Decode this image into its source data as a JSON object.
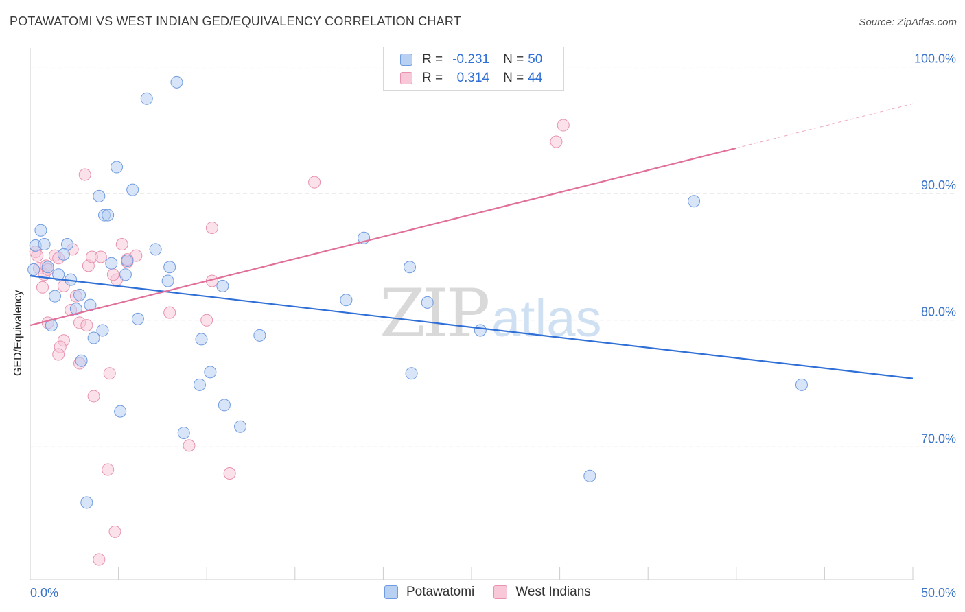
{
  "header": {
    "title": "POTAWATOMI VS WEST INDIAN GED/EQUIVALENCY CORRELATION CHART",
    "source": "Source: ZipAtlas.com"
  },
  "legend_stats": {
    "blue": {
      "r_label": "R =",
      "r_value": "-0.231",
      "n_label": "N =",
      "n_value": "50"
    },
    "pink": {
      "r_label": "R =",
      "r_value": "0.314",
      "n_label": "N =",
      "n_value": "44"
    }
  },
  "bottom_legend": {
    "blue": "Potawatomi",
    "pink": "West Indians"
  },
  "watermark": {
    "zip": "ZIP",
    "atlas": "atlas"
  },
  "colors": {
    "blue_fill": "#b8d0f2",
    "blue_stroke": "#6f9be0",
    "blue_line": "#2f6fd6",
    "pink_fill": "#f8c8d8",
    "pink_stroke": "#e892b0",
    "pink_line": "#e07099",
    "tick_label": "#3a73c9",
    "grid": "#e6e6e6"
  },
  "chart_data": {
    "type": "scatter",
    "title": "POTAWATOMI VS WEST INDIAN GED/EQUIVALENCY CORRELATION CHART",
    "xlabel": "",
    "ylabel": "GED/Equivalency",
    "xlim": [
      0,
      50
    ],
    "ylim": [
      59.5,
      101.5
    ],
    "x_tick_labels": [
      "0.0%",
      "50.0%"
    ],
    "y_ticks": [
      70,
      80,
      90,
      100
    ],
    "y_tick_labels": [
      "70.0%",
      "80.0%",
      "90.0%",
      "100.0%"
    ],
    "grid": true,
    "series": [
      {
        "name": "Potawatomi",
        "color": "blue",
        "r": -0.231,
        "n": 50,
        "trend": {
          "x0": 0,
          "y0": 83.5,
          "x1": 50,
          "y1": 75.4
        },
        "points": [
          [
            8.3,
            98.8
          ],
          [
            6.6,
            97.5
          ],
          [
            4.9,
            92.1
          ],
          [
            5.8,
            90.3
          ],
          [
            3.9,
            89.8
          ],
          [
            4.2,
            88.3
          ],
          [
            4.4,
            88.3
          ],
          [
            0.6,
            87.1
          ],
          [
            0.3,
            85.9
          ],
          [
            0.8,
            86.0
          ],
          [
            2.1,
            86.0
          ],
          [
            1.9,
            85.2
          ],
          [
            7.1,
            85.6
          ],
          [
            4.6,
            84.5
          ],
          [
            5.5,
            84.7
          ],
          [
            7.9,
            84.2
          ],
          [
            1.0,
            84.2
          ],
          [
            0.2,
            84.0
          ],
          [
            1.6,
            83.6
          ],
          [
            5.4,
            83.6
          ],
          [
            2.3,
            83.2
          ],
          [
            7.8,
            83.1
          ],
          [
            10.9,
            82.7
          ],
          [
            1.4,
            81.9
          ],
          [
            2.8,
            82.0
          ],
          [
            3.4,
            81.2
          ],
          [
            2.6,
            80.9
          ],
          [
            6.1,
            80.1
          ],
          [
            1.2,
            79.6
          ],
          [
            4.1,
            79.2
          ],
          [
            3.6,
            78.6
          ],
          [
            9.7,
            78.5
          ],
          [
            13.0,
            78.8
          ],
          [
            2.9,
            76.8
          ],
          [
            10.2,
            75.9
          ],
          [
            9.6,
            74.9
          ],
          [
            5.1,
            72.8
          ],
          [
            11.0,
            73.3
          ],
          [
            11.9,
            71.6
          ],
          [
            8.7,
            71.1
          ],
          [
            18.9,
            86.5
          ],
          [
            17.9,
            81.6
          ],
          [
            21.5,
            84.2
          ],
          [
            22.5,
            81.4
          ],
          [
            25.5,
            79.2
          ],
          [
            21.6,
            75.8
          ],
          [
            37.6,
            89.4
          ],
          [
            43.7,
            74.9
          ],
          [
            31.7,
            67.7
          ],
          [
            3.2,
            65.6
          ]
        ]
      },
      {
        "name": "West Indians",
        "color": "pink",
        "r": 0.314,
        "n": 44,
        "trend": {
          "x0": 0,
          "y0": 79.6,
          "x1": 40,
          "y1": 93.6,
          "dash_to_x": 50,
          "dash_to_y": 97.1
        },
        "points": [
          [
            0.3,
            85.4
          ],
          [
            0.4,
            85.1
          ],
          [
            0.5,
            84.1
          ],
          [
            0.9,
            84.3
          ],
          [
            0.8,
            83.6
          ],
          [
            1.0,
            84.0
          ],
          [
            2.4,
            85.6
          ],
          [
            1.4,
            85.1
          ],
          [
            1.6,
            84.9
          ],
          [
            0.7,
            82.6
          ],
          [
            1.9,
            82.7
          ],
          [
            3.3,
            84.3
          ],
          [
            3.5,
            85.0
          ],
          [
            4.0,
            85.0
          ],
          [
            5.2,
            86.0
          ],
          [
            5.5,
            84.6
          ],
          [
            6.0,
            85.1
          ],
          [
            4.9,
            83.2
          ],
          [
            4.7,
            83.6
          ],
          [
            10.3,
            87.3
          ],
          [
            10.3,
            83.1
          ],
          [
            2.6,
            81.9
          ],
          [
            2.3,
            80.8
          ],
          [
            2.8,
            79.8
          ],
          [
            1.0,
            79.8
          ],
          [
            3.2,
            79.6
          ],
          [
            1.9,
            78.4
          ],
          [
            1.7,
            77.9
          ],
          [
            1.6,
            77.3
          ],
          [
            2.8,
            76.6
          ],
          [
            4.5,
            75.8
          ],
          [
            3.6,
            74.0
          ],
          [
            7.9,
            80.6
          ],
          [
            10.0,
            80.0
          ],
          [
            9.0,
            70.1
          ],
          [
            4.4,
            68.2
          ],
          [
            11.3,
            67.9
          ],
          [
            3.1,
            91.5
          ],
          [
            16.1,
            90.9
          ],
          [
            29.8,
            94.1
          ],
          [
            30.2,
            95.4
          ],
          [
            4.8,
            63.3
          ],
          [
            3.9,
            61.1
          ],
          [
            5.5,
            84.8
          ]
        ]
      }
    ]
  }
}
